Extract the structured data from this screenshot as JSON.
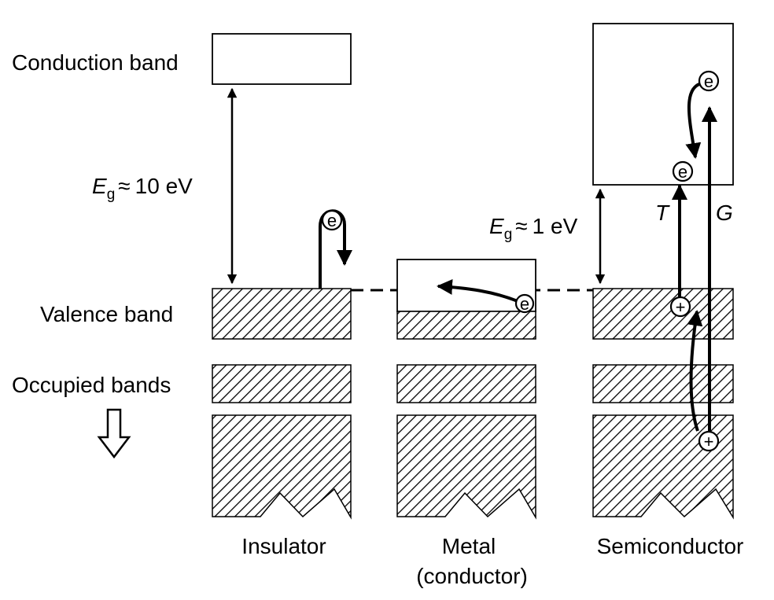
{
  "labels": {
    "conduction_band": "Conduction band",
    "valence_band": "Valence band",
    "occupied_bands": "Occupied bands",
    "insulator": "Insulator",
    "metal_line1": "Metal",
    "metal_line2": "(conductor)",
    "semiconductor": "Semiconductor"
  },
  "gaps": {
    "insulator": {
      "symbol": "E",
      "subscript": "g",
      "relation": "≈",
      "value": "10 eV"
    },
    "semiconductor": {
      "symbol": "E",
      "subscript": "g",
      "relation": "≈",
      "value": "1 eV"
    }
  },
  "processes": {
    "thermal": "T",
    "generation": "G"
  },
  "particles": {
    "electron": "e",
    "hole": "+"
  }
}
